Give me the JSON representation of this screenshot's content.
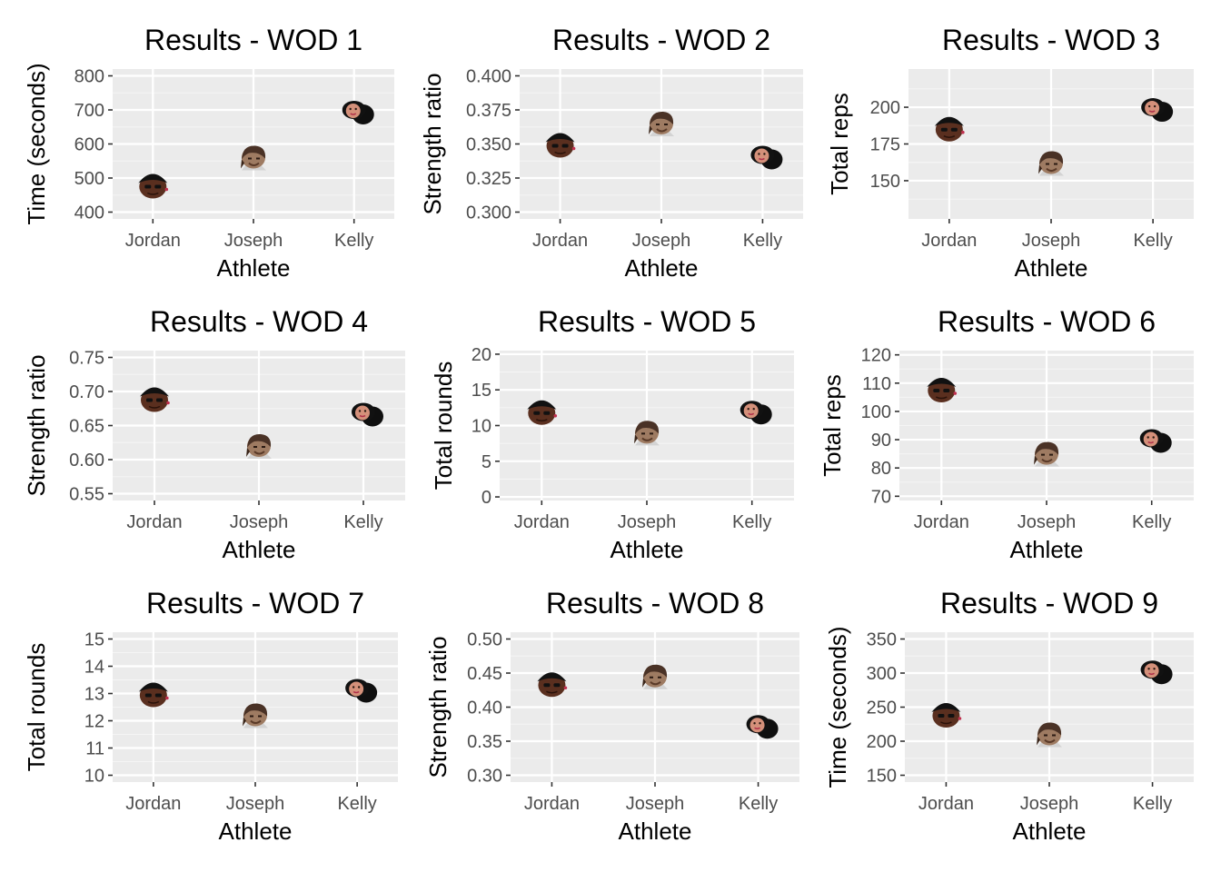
{
  "colors": {
    "panel_background": "#ebebeb",
    "grid_major": "#ffffff",
    "grid_minor": "#f5f5f5",
    "tick": "#333333",
    "tick_label": "#4d4d4d",
    "text": "#000000"
  },
  "chart_data": [
    {
      "type": "scatter",
      "title": "Results - WOD 1",
      "xlabel": "Athlete",
      "ylabel": "Time (seconds)",
      "categories": [
        "Jordan",
        "Joseph",
        "Kelly"
      ],
      "values": [
        480,
        560,
        700
      ],
      "marker_icons": [
        "jordan-face-icon",
        "joseph-face-icon",
        "kelly-face-icon"
      ],
      "ylim": [
        380,
        820
      ],
      "yticks": [
        400,
        500,
        600,
        700,
        800
      ],
      "ytick_labels": [
        "400",
        "500",
        "600",
        "700",
        "800"
      ]
    },
    {
      "type": "scatter",
      "title": "Results - WOD 2",
      "xlabel": "Athlete",
      "ylabel": "Strength ratio",
      "categories": [
        "Jordan",
        "Joseph",
        "Kelly"
      ],
      "values": [
        0.35,
        0.365,
        0.342
      ],
      "marker_icons": [
        "jordan-face-icon",
        "joseph-face-icon",
        "kelly-face-icon"
      ],
      "ylim": [
        0.295,
        0.405
      ],
      "yticks": [
        0.3,
        0.325,
        0.35,
        0.375,
        0.4
      ],
      "ytick_labels": [
        "0.300",
        "0.325",
        "0.350",
        "0.375",
        "0.400"
      ]
    },
    {
      "type": "scatter",
      "title": "Results - WOD 3",
      "xlabel": "Athlete",
      "ylabel": "Total reps",
      "categories": [
        "Jordan",
        "Joseph",
        "Kelly"
      ],
      "values": [
        186,
        162,
        200
      ],
      "marker_icons": [
        "jordan-face-icon",
        "joseph-face-icon",
        "kelly-face-icon"
      ],
      "ylim": [
        124,
        226
      ],
      "yticks": [
        150,
        175,
        200
      ],
      "ytick_labels": [
        "150",
        "175",
        "200"
      ]
    },
    {
      "type": "scatter",
      "title": "Results - WOD 4",
      "xlabel": "Athlete",
      "ylabel": "Strength ratio",
      "categories": [
        "Jordan",
        "Joseph",
        "Kelly"
      ],
      "values": [
        0.69,
        0.62,
        0.67
      ],
      "marker_icons": [
        "jordan-face-icon",
        "joseph-face-icon",
        "kelly-face-icon"
      ],
      "ylim": [
        0.54,
        0.76
      ],
      "yticks": [
        0.55,
        0.6,
        0.65,
        0.7,
        0.75
      ],
      "ytick_labels": [
        "0.55",
        "0.60",
        "0.65",
        "0.70",
        "0.75"
      ]
    },
    {
      "type": "scatter",
      "title": "Results - WOD 5",
      "xlabel": "Athlete",
      "ylabel": "Total rounds",
      "categories": [
        "Jordan",
        "Joseph",
        "Kelly"
      ],
      "values": [
        12,
        9,
        12.2
      ],
      "marker_icons": [
        "jordan-face-icon",
        "joseph-face-icon",
        "kelly-face-icon"
      ],
      "ylim": [
        -0.5,
        20.5
      ],
      "yticks": [
        0,
        5,
        10,
        15,
        20
      ],
      "ytick_labels": [
        "0",
        "5",
        "10",
        "15",
        "20"
      ]
    },
    {
      "type": "scatter",
      "title": "Results - WOD 6",
      "xlabel": "Athlete",
      "ylabel": "Total reps",
      "categories": [
        "Jordan",
        "Joseph",
        "Kelly"
      ],
      "values": [
        108,
        85,
        90.5
      ],
      "marker_icons": [
        "jordan-face-icon",
        "joseph-face-icon",
        "kelly-face-icon"
      ],
      "ylim": [
        68.5,
        121.5
      ],
      "yticks": [
        70,
        80,
        90,
        100,
        110,
        120
      ],
      "ytick_labels": [
        "70",
        "80",
        "90",
        "100",
        "110",
        "120"
      ]
    },
    {
      "type": "scatter",
      "title": "Results - WOD 7",
      "xlabel": "Athlete",
      "ylabel": "Total rounds",
      "categories": [
        "Jordan",
        "Joseph",
        "Kelly"
      ],
      "values": [
        13,
        12.2,
        13.2
      ],
      "marker_icons": [
        "jordan-face-icon",
        "joseph-face-icon",
        "kelly-face-icon"
      ],
      "ylim": [
        9.75,
        15.25
      ],
      "yticks": [
        10,
        11,
        12,
        13,
        14,
        15
      ],
      "ytick_labels": [
        "10",
        "11",
        "12",
        "13",
        "14",
        "15"
      ]
    },
    {
      "type": "scatter",
      "title": "Results - WOD 8",
      "xlabel": "Athlete",
      "ylabel": "Strength ratio",
      "categories": [
        "Jordan",
        "Joseph",
        "Kelly"
      ],
      "values": [
        0.435,
        0.445,
        0.375
      ],
      "marker_icons": [
        "jordan-face-icon",
        "joseph-face-icon",
        "kelly-face-icon"
      ],
      "ylim": [
        0.29,
        0.51
      ],
      "yticks": [
        0.3,
        0.35,
        0.4,
        0.45,
        0.5
      ],
      "ytick_labels": [
        "0.30",
        "0.35",
        "0.40",
        "0.45",
        "0.50"
      ]
    },
    {
      "type": "scatter",
      "title": "Results - WOD 9",
      "xlabel": "Athlete",
      "ylabel": "Time (seconds)",
      "categories": [
        "Jordan",
        "Joseph",
        "Kelly"
      ],
      "values": [
        240,
        210,
        305
      ],
      "marker_icons": [
        "jordan-face-icon",
        "joseph-face-icon",
        "kelly-face-icon"
      ],
      "ylim": [
        140,
        360
      ],
      "yticks": [
        150,
        200,
        250,
        300,
        350
      ],
      "ytick_labels": [
        "150",
        "200",
        "250",
        "300",
        "350"
      ]
    }
  ]
}
